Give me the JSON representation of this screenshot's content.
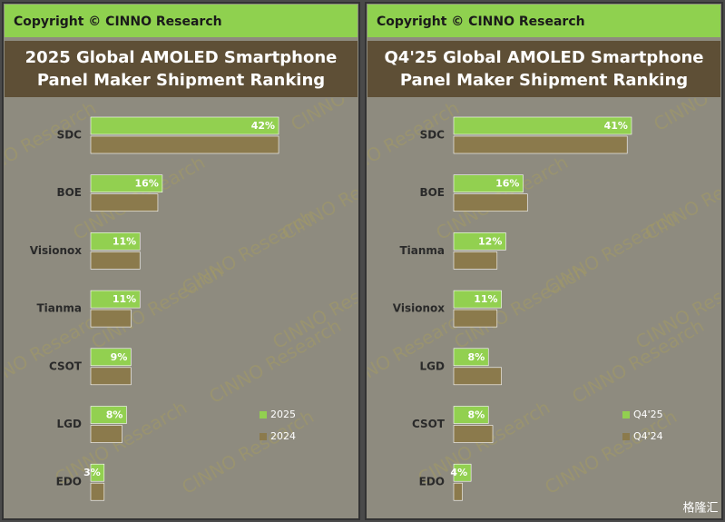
{
  "chart_data": [
    {
      "type": "bar",
      "orientation": "horizontal",
      "header": "Copyright © CINNO Research",
      "title": [
        "2025 Global AMOLED Smartphone",
        "Panel Maker Shipment Ranking"
      ],
      "watermark": "CINNO Research",
      "categories": [
        "SDC",
        "BOE",
        "Visionox",
        "Tianma",
        "CSOT",
        "LGD",
        "EDO"
      ],
      "series": [
        {
          "name": "2025",
          "color": "#92d050",
          "values": [
            42,
            16,
            11,
            11,
            9,
            8,
            3
          ],
          "value_labels": [
            "42%",
            "16%",
            "11%",
            "11%",
            "9%",
            "8%",
            "3%"
          ]
        },
        {
          "name": "2024",
          "color": "#8b7a4c",
          "values": [
            42,
            15,
            11,
            9,
            9,
            7,
            3
          ]
        }
      ]
    },
    {
      "type": "bar",
      "orientation": "horizontal",
      "header": "Copyright © CINNO Research",
      "title": [
        "Q4'25 Global AMOLED Smartphone",
        "Panel Maker Shipment Ranking"
      ],
      "watermark": "CINNO Research",
      "categories": [
        "SDC",
        "BOE",
        "Tianma",
        "Visionox",
        "LGD",
        "CSOT",
        "EDO"
      ],
      "series": [
        {
          "name": "Q4'25",
          "color": "#92d050",
          "values": [
            41,
            16,
            12,
            11,
            8,
            8,
            4
          ],
          "value_labels": [
            "41%",
            "16%",
            "12%",
            "11%",
            "8%",
            "8%",
            "4%"
          ]
        },
        {
          "name": "Q4'24",
          "color": "#8b7a4c",
          "values": [
            40,
            17,
            10,
            10,
            11,
            9,
            2
          ]
        }
      ]
    }
  ],
  "logo": "格隆汇"
}
